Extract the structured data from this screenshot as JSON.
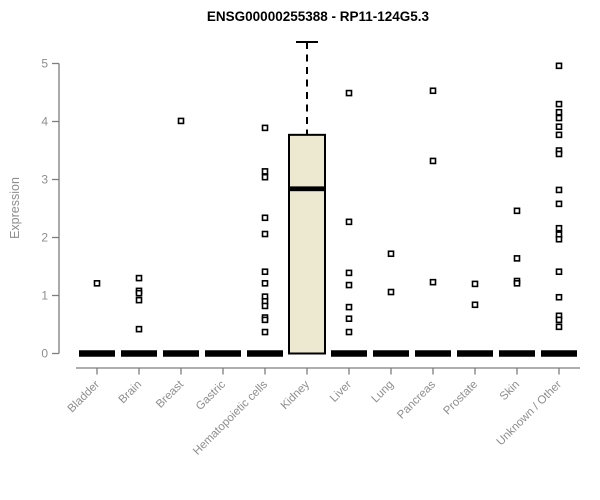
{
  "page": {
    "background": "#ffffff"
  },
  "chart_data": {
    "type": "boxplot",
    "title": "ENSG00000255388 - RP11-124G5.3",
    "ylabel": "Expression",
    "xlabel": "",
    "ylim": [
      0,
      5.5
    ],
    "yticks": [
      0,
      1,
      2,
      3,
      4,
      5
    ],
    "grid": false,
    "legend": "none",
    "categories": [
      "Bladder",
      "Brain",
      "Breast",
      "Gastric",
      "Hematopoietic cells",
      "Kidney",
      "Liver",
      "Lung",
      "Pancreas",
      "Prostate",
      "Skin",
      "Unknown / Other"
    ],
    "series": [
      {
        "category": "Bladder",
        "whisker_low": 0,
        "q1": 0,
        "median": 0,
        "q3": 0,
        "whisker_high": 0,
        "outliers": [
          1.21
        ]
      },
      {
        "category": "Brain",
        "whisker_low": 0,
        "q1": 0,
        "median": 0,
        "q3": 0,
        "whisker_high": 0,
        "outliers": [
          1.3,
          1.08,
          1.04,
          0.92,
          0.42
        ]
      },
      {
        "category": "Breast",
        "whisker_low": 0,
        "q1": 0,
        "median": 0,
        "q3": 0,
        "whisker_high": 0,
        "outliers": [
          4.01
        ]
      },
      {
        "category": "Gastric",
        "whisker_low": 0,
        "q1": 0,
        "median": 0,
        "q3": 0,
        "whisker_high": 0,
        "outliers": []
      },
      {
        "category": "Hematopoietic cells",
        "whisker_low": 0,
        "q1": 0,
        "median": 0,
        "q3": 0,
        "whisker_high": 0,
        "outliers": [
          3.89,
          3.14,
          3.04,
          2.34,
          2.06,
          1.41,
          1.21,
          0.98,
          0.9,
          0.82,
          0.62,
          0.58,
          0.37
        ]
      },
      {
        "category": "Kidney",
        "whisker_low": 0,
        "q1": 0,
        "median": 2.84,
        "q3": 3.77,
        "whisker_high": 5.37,
        "outliers": []
      },
      {
        "category": "Liver",
        "whisker_low": 0,
        "q1": 0,
        "median": 0,
        "q3": 0,
        "whisker_high": 0,
        "outliers": [
          4.49,
          2.27,
          1.39,
          1.18,
          0.8,
          0.6,
          0.37
        ]
      },
      {
        "category": "Lung",
        "whisker_low": 0,
        "q1": 0,
        "median": 0,
        "q3": 0,
        "whisker_high": 0,
        "outliers": [
          1.72,
          1.06
        ]
      },
      {
        "category": "Pancreas",
        "whisker_low": 0,
        "q1": 0,
        "median": 0,
        "q3": 0,
        "whisker_high": 0,
        "outliers": [
          4.53,
          3.32,
          1.23
        ]
      },
      {
        "category": "Prostate",
        "whisker_low": 0,
        "q1": 0,
        "median": 0,
        "q3": 0,
        "whisker_high": 0,
        "outliers": [
          1.2,
          0.84
        ]
      },
      {
        "category": "Skin",
        "whisker_low": 0,
        "q1": 0,
        "median": 0,
        "q3": 0,
        "whisker_high": 0,
        "outliers": [
          2.46,
          1.64,
          1.25,
          1.21
        ]
      },
      {
        "category": "Unknown / Other",
        "whisker_low": 0,
        "q1": 0,
        "median": 0,
        "q3": 0,
        "whisker_high": 0,
        "outliers": [
          4.96,
          4.3,
          4.16,
          4.06,
          3.91,
          3.77,
          3.5,
          3.44,
          2.82,
          2.58,
          2.16,
          2.05,
          1.97,
          1.41,
          0.97,
          0.65,
          0.58,
          0.46
        ]
      }
    ],
    "colors": {
      "box_fill": "#ede8d0",
      "box_border": "#000000",
      "median": "#000000",
      "whisker": "#000000",
      "point_stroke": "#000000",
      "point_fill": "#ffffff",
      "axis": "#7d7d7d",
      "tick_label": "#8e8e8e",
      "title": "#000000",
      "background": "#ffffff"
    }
  }
}
